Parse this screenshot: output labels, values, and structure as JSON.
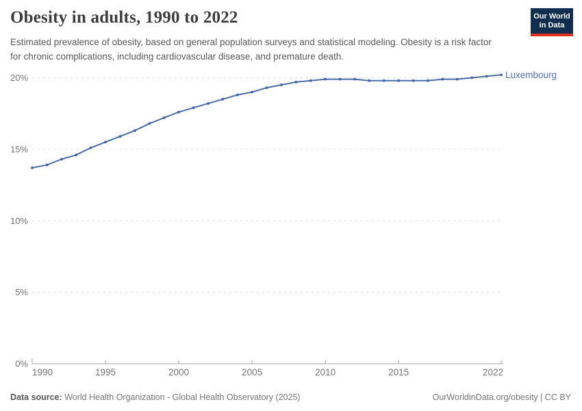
{
  "header": {
    "title": "Obesity in adults, 1990 to 2022",
    "subtitle": "Estimated prevalence of obesity, based on general population surveys and statistical modeling. Obesity is a risk factor for chronic complications, including cardiovascular disease, and premature death.",
    "logo": {
      "line1": "Our World",
      "line2": "in Data"
    }
  },
  "chart_data": {
    "type": "line",
    "title": "Obesity in adults, 1990 to 2022",
    "entity_label": "Luxembourg",
    "unit": "%",
    "x": [
      1990,
      1991,
      1992,
      1993,
      1994,
      1995,
      1996,
      1997,
      1998,
      1999,
      2000,
      2001,
      2002,
      2003,
      2004,
      2005,
      2006,
      2007,
      2008,
      2009,
      2010,
      2011,
      2012,
      2013,
      2014,
      2015,
      2016,
      2017,
      2018,
      2019,
      2020,
      2021,
      2022
    ],
    "series": [
      {
        "name": "Luxembourg",
        "values": [
          13.7,
          13.9,
          14.3,
          14.6,
          15.1,
          15.5,
          15.9,
          16.3,
          16.8,
          17.2,
          17.6,
          17.9,
          18.2,
          18.5,
          18.8,
          19.0,
          19.3,
          19.5,
          19.7,
          19.8,
          19.9,
          19.9,
          19.9,
          19.8,
          19.8,
          19.8,
          19.8,
          19.8,
          19.9,
          19.9,
          20.0,
          20.1,
          20.2
        ]
      }
    ],
    "xlabel": "",
    "ylabel": "",
    "ylim": [
      0,
      20
    ],
    "yticks": [
      0,
      5,
      10,
      15,
      20
    ],
    "ytick_labels": [
      "0%",
      "5%",
      "10%",
      "15%",
      "20%"
    ],
    "xticks": [
      1990,
      1995,
      2000,
      2005,
      2010,
      2015,
      2022
    ],
    "grid": "horizontal-dashed",
    "legend_position": "end-of-line-label",
    "colors": {
      "line": "#4C6CA6",
      "marker": "#3D62A3",
      "entity_label": "#4D6FB0",
      "gridline": "#DEDEDE",
      "axis": "#A5A5A5",
      "tick_text": "#737373"
    }
  },
  "footer": {
    "source_label": "Data source:",
    "source_value": " World Health Organization - Global Health Observatory (2025)",
    "right_text": "OurWorldinData.org/obesity | CC BY"
  },
  "brand": {
    "navy": "#112E51",
    "red": "#E0301E"
  }
}
